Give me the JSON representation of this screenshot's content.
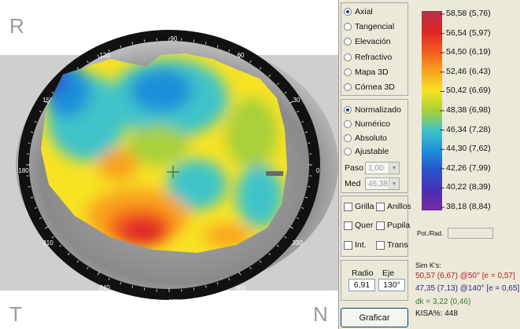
{
  "map": {
    "corners": {
      "top_left": "R",
      "bottom_left": "T",
      "bottom_right": "N"
    },
    "ring_degrees": [
      "90",
      "60",
      "30",
      "0",
      "330",
      "300",
      "270",
      "240",
      "210",
      "180",
      "150",
      "120"
    ]
  },
  "map_type": {
    "options": [
      "Axial",
      "Tangencial",
      "Elevación",
      "Refractivo",
      "Mapa 3D",
      "Córnea 3D"
    ],
    "selected": "Axial"
  },
  "scale_type": {
    "options": [
      "Normalizado",
      "Numérico",
      "Absoluto",
      "Ajustable"
    ],
    "selected": "Normalizado"
  },
  "step": {
    "label": "Paso",
    "value": "1,00"
  },
  "med": {
    "label": "Med",
    "value": "46,38"
  },
  "checks": {
    "grilla": "Grilla",
    "anillos": "Anillos",
    "quer": "Quer",
    "pupila": "Pupila",
    "int": "Int.",
    "trans": "Trans"
  },
  "radius": {
    "label": "Radio",
    "value": "6,91"
  },
  "axis": {
    "label": "Eje",
    "value": "130°"
  },
  "plot_button": "Graficar",
  "legend": {
    "entries": [
      {
        "label": "58,58 (5,76)",
        "color": "#b3304a"
      },
      {
        "label": "56,54 (5,97)",
        "color": "#dd2525"
      },
      {
        "label": "54,50 (6,19)",
        "color": "#f25a1c"
      },
      {
        "label": "52,46 (6,43)",
        "color": "#f9a21e"
      },
      {
        "label": "50,42 (6,69)",
        "color": "#f7e224"
      },
      {
        "label": "48,38 (6,98)",
        "color": "#a9cf3a"
      },
      {
        "label": "46,34 (7,28)",
        "color": "#3fc4c9"
      },
      {
        "label": "44,30 (7,62)",
        "color": "#1f8fd9"
      },
      {
        "label": "42,26 (7,99)",
        "color": "#2a52cc"
      },
      {
        "label": "40,22 (8,39)",
        "color": "#4b2fb4"
      },
      {
        "label": "38,18 (8,84)",
        "color": "#7a2a9e"
      }
    ],
    "pot_label": "Pot./Rad.",
    "pot_value": ""
  },
  "simk": {
    "title": "Sim K's:",
    "k1": "50,57 (6,67) @50° [e = 0,57]",
    "k2": "47,35 (7,13) @140° [e = 0,65]",
    "dk": "dk = 3,22 (0,46)",
    "kisa": "KISA%: 448",
    "colors": {
      "k1": "#b22222",
      "k2": "#2a2a8a",
      "dk": "#2e7d32",
      "kisa": "#111111"
    }
  }
}
